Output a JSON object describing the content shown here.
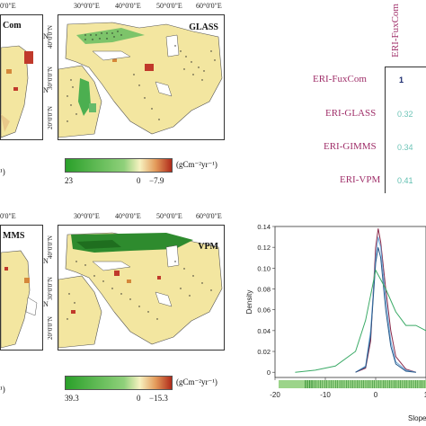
{
  "maps": [
    {
      "label": "Com"
    },
    {
      "label": "GLASS",
      "lon_ticks": [
        "30°0'0\"E",
        "40°0'0\"E",
        "50°0'0\"E",
        "60°0'0\"E"
      ],
      "lat_ticks": [
        "40°0'0\"N",
        "30°0'0\"N",
        "20°0'0\"N"
      ]
    },
    {
      "label": "MMS"
    },
    {
      "label": "VPM",
      "lon_ticks": [
        "30°0'0\"E",
        "40°0'0\"E",
        "50°0'0\"E",
        "60°0'0\"E"
      ],
      "lat_ticks": [
        "40°0'0\"N",
        "30°0'0\"N",
        "20°0'0\"N"
      ]
    }
  ],
  "left_fragments": {
    "lon_partial_top": "0'0\"E",
    "lon_partial_bottom": "0'0\"E",
    "lat_n_1": "N",
    "lat_n_2": "N",
    "lat_n_3": "N",
    "lat_n_4": "N",
    "unit_partial_top": "¹)",
    "unit_partial_bottom": "¹)"
  },
  "legends": [
    {
      "min": "23",
      "zero": "0",
      "max": "−7.9",
      "unit": "(gCm⁻²yr⁻¹)"
    },
    {
      "min": "39.3",
      "zero": "0",
      "max": "−15.3",
      "unit": "(gCm⁻²yr⁻¹)"
    }
  ],
  "matrix": {
    "col_header": "ERI-FuxCom",
    "rows": [
      {
        "label": "ERI-FuxCom",
        "value": "1",
        "color": "#1a2a6e"
      },
      {
        "label": "ERI-GLASS",
        "value": "0.32",
        "color": "#6fc5b8"
      },
      {
        "label": "ERI-GIMMS",
        "value": "0.34",
        "color": "#6fc5b8"
      },
      {
        "label": "ERI-VPM",
        "value": "0.41",
        "color": "#5fbfb0"
      }
    ]
  },
  "chart_data": {
    "type": "line",
    "title": "",
    "xlabel": "Slope (g",
    "ylabel": "Density",
    "xlim": [
      -20,
      10
    ],
    "ylim": [
      -0.005,
      0.14
    ],
    "x_ticks": [
      "-20",
      "-10",
      "0",
      "1"
    ],
    "y_ticks": [
      "0",
      "0.02",
      "0.04",
      "0.06",
      "0.08",
      "0.10",
      "0.12",
      "0.14"
    ],
    "series": [
      {
        "color": "#8b2a4a",
        "x": [
          -4,
          -2,
          -1,
          0,
          0.5,
          1,
          2,
          3,
          4,
          6,
          8
        ],
        "y": [
          0,
          0.004,
          0.03,
          0.12,
          0.138,
          0.125,
          0.08,
          0.04,
          0.015,
          0.003,
          0
        ]
      },
      {
        "color": "#6fa8d8",
        "x": [
          -4,
          -2,
          -1,
          0,
          0.5,
          1,
          2,
          3,
          4,
          6,
          8
        ],
        "y": [
          0,
          0.006,
          0.04,
          0.11,
          0.13,
          0.12,
          0.07,
          0.03,
          0.01,
          0.002,
          0
        ]
      },
      {
        "color": "#2a5a8a",
        "x": [
          -4,
          -2,
          -1,
          0,
          0.5,
          1,
          2,
          3,
          4,
          6,
          8
        ],
        "y": [
          0,
          0.005,
          0.035,
          0.105,
          0.12,
          0.11,
          0.06,
          0.025,
          0.008,
          0.001,
          0
        ]
      },
      {
        "color": "#3aaa66",
        "x": [
          -16,
          -12,
          -8,
          -4,
          -2,
          0,
          2,
          4,
          6,
          8,
          10
        ],
        "y": [
          0,
          0.002,
          0.006,
          0.02,
          0.05,
          0.098,
          0.08,
          0.058,
          0.045,
          0.045,
          0.04
        ]
      }
    ]
  },
  "colors": {
    "green": "#33a02c",
    "yellow": "#f3e6a0",
    "red": "#c0392b",
    "magenta": "#a0306a"
  }
}
